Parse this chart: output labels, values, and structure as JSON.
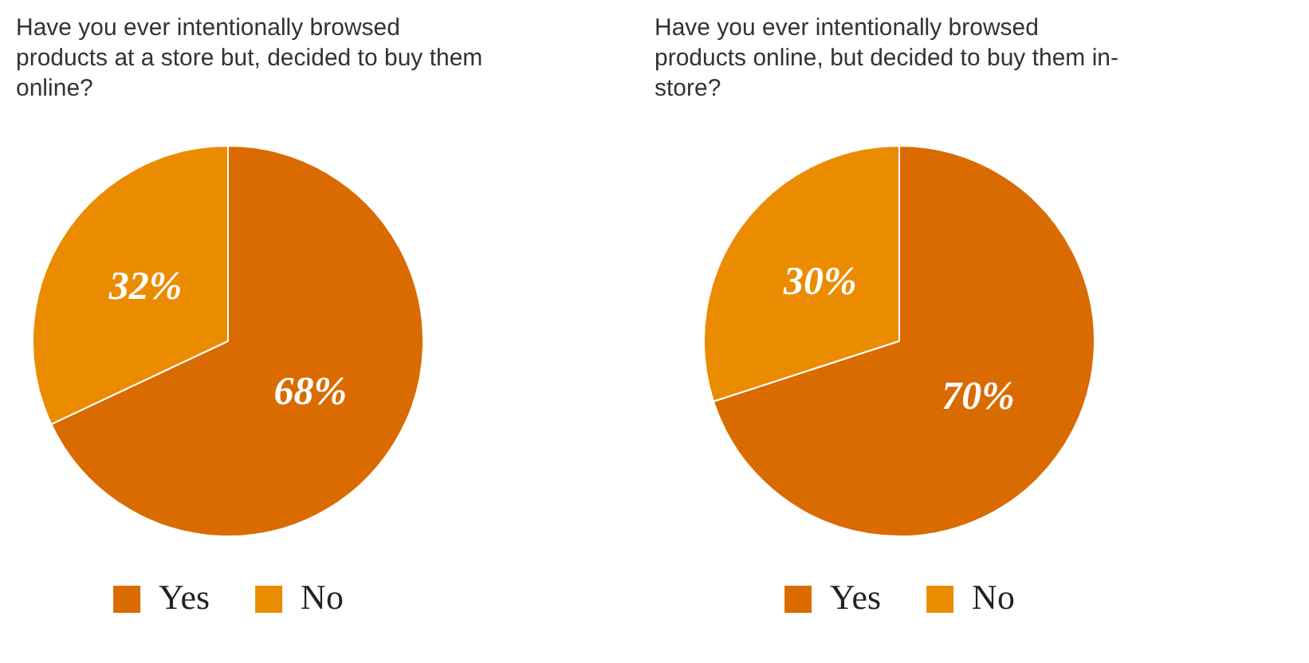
{
  "chart_data": [
    {
      "type": "pie",
      "title": "Have you ever intentionally browsed products at a store but, decided to buy them online?",
      "categories": [
        "Yes",
        "No"
      ],
      "values": [
        68,
        32
      ],
      "colors": [
        "#d96b00",
        "#eb8c00"
      ],
      "value_labels": [
        "68%",
        "32%"
      ],
      "legend": "bottom"
    },
    {
      "type": "pie",
      "title": "Have you ever intentionally browsed products online, but decided to buy them in-store?",
      "categories": [
        "Yes",
        "No"
      ],
      "values": [
        70,
        30
      ],
      "colors": [
        "#d96b00",
        "#eb8c00"
      ],
      "value_labels": [
        "70%",
        "30%"
      ],
      "legend": "bottom"
    }
  ]
}
